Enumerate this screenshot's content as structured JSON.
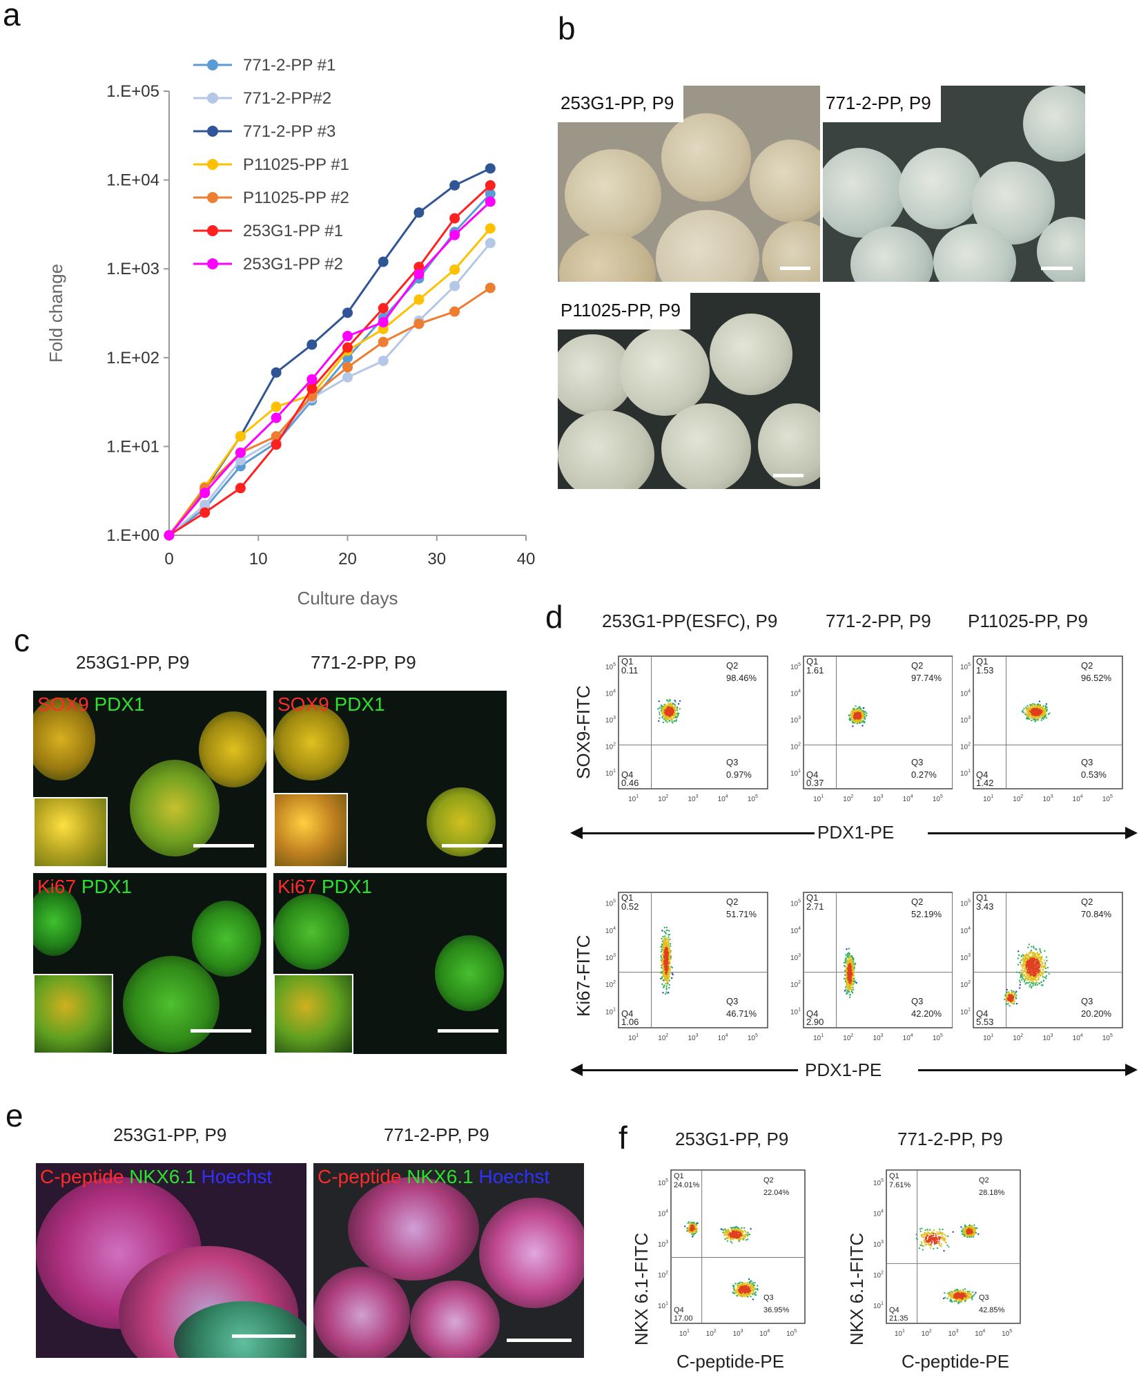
{
  "panels": {
    "a": "a",
    "b": "b",
    "c": "c",
    "d": "d",
    "e": "e",
    "f": "f"
  },
  "chart_data": {
    "type": "line",
    "xlabel": "Culture days",
    "ylabel": "Fold change",
    "xlim": [
      0,
      40
    ],
    "xticks": [
      "0",
      "10",
      "20",
      "30",
      "40"
    ],
    "yscale": "log",
    "ylim": [
      1,
      100000
    ],
    "yticks": [
      "1.E+00",
      "1.E+01",
      "1.E+02",
      "1.E+03",
      "1.E+04",
      "1.E+05"
    ],
    "legend_position": "top-left",
    "x": [
      0,
      4,
      8,
      12,
      16,
      20,
      24,
      28,
      32,
      36
    ],
    "series": [
      {
        "name": "771-2-PP #1",
        "color": "#5b9bd5",
        "values": [
          1,
          2.0,
          6.0,
          11,
          33,
          100,
          280,
          780,
          2600,
          7000
        ]
      },
      {
        "name": "771-2-PP#2",
        "color": "#b4c7e7",
        "values": [
          1,
          2.2,
          7.0,
          12,
          35,
          60,
          92,
          260,
          640,
          1950
        ]
      },
      {
        "name": "771-2-PP #3",
        "color": "#2f5597",
        "values": [
          1,
          3.3,
          13,
          68,
          140,
          320,
          1200,
          4300,
          8700,
          13500
        ]
      },
      {
        "name": "P11025-PP #1",
        "color": "#ffc000",
        "values": [
          1,
          3.5,
          13,
          28,
          38,
          120,
          210,
          450,
          980,
          2850
        ]
      },
      {
        "name": "P11025-PP #2",
        "color": "#ed7d31",
        "values": [
          1,
          3.4,
          8.5,
          13,
          37,
          78,
          150,
          240,
          330,
          610
        ]
      },
      {
        "name": "253G1-PP  #1",
        "color": "#ff2020",
        "values": [
          1,
          1.8,
          3.4,
          10.5,
          45,
          130,
          360,
          1050,
          3700,
          8700
        ]
      },
      {
        "name": "253G1-PP  #2",
        "color": "#ff00ff",
        "values": [
          1,
          3.0,
          8.5,
          21,
          57,
          175,
          250,
          870,
          2400,
          5700
        ]
      }
    ]
  },
  "panel_b": {
    "images": [
      {
        "label": "253G1-PP, P9"
      },
      {
        "label": "771-2-PP, P9"
      },
      {
        "label": "P11025-PP, P9"
      }
    ]
  },
  "panel_c": {
    "col_titles": [
      "253G1-PP, P9",
      "771-2-PP, P9"
    ],
    "row1": {
      "red": "SOX9",
      "green": "PDX1"
    },
    "row2": {
      "red": "Ki67",
      "green": "PDX1"
    }
  },
  "panel_d": {
    "col_titles": [
      "253G1-PP(ESFC), P9",
      "771-2-PP, P9",
      "P11025-PP, P9"
    ],
    "row1_ylabel": "SOX9-FITC",
    "row2_ylabel": "Ki67-FITC",
    "xlabel": "PDX1-PE",
    "row1": [
      {
        "q1": "0.11",
        "q2": "98.46%",
        "q3": "0.97%",
        "q4": "0.46"
      },
      {
        "q1": "1.61",
        "q2": "97.74%",
        "q3": "0.27%",
        "q4": "0.37"
      },
      {
        "q1": "1.53",
        "q2": "96.52%",
        "q3": "0.53%",
        "q4": "1.42"
      }
    ],
    "row2": [
      {
        "q1": "0.52",
        "q2": "51.71%",
        "q3": "46.71%",
        "q4": "1.06"
      },
      {
        "q1": "2.71",
        "q2": "52.19%",
        "q3": "42.20%",
        "q4": "2.90"
      },
      {
        "q1": "3.43",
        "q2": "70.84%",
        "q3": "20.20%",
        "q4": "5.53"
      }
    ]
  },
  "panel_e": {
    "col_titles": [
      "253G1-PP, P9",
      "771-2-PP, P9"
    ],
    "stain": {
      "red": "C-peptide",
      "green": "NKX6.1",
      "blue": "Hoechst"
    }
  },
  "panel_f": {
    "col_titles": [
      "253G1-PP, P9",
      "771-2-PP, P9"
    ],
    "ylabel": "NKX 6.1-FITC",
    "xlabel": "C-peptide-PE",
    "plots": [
      {
        "q1": "24.01%",
        "q2": "22.04%",
        "q3": "36.95%",
        "q4": "17.00"
      },
      {
        "q1": "7.61%",
        "q2": "28.18%",
        "q3": "42.85%",
        "q4": "21.35"
      }
    ]
  }
}
